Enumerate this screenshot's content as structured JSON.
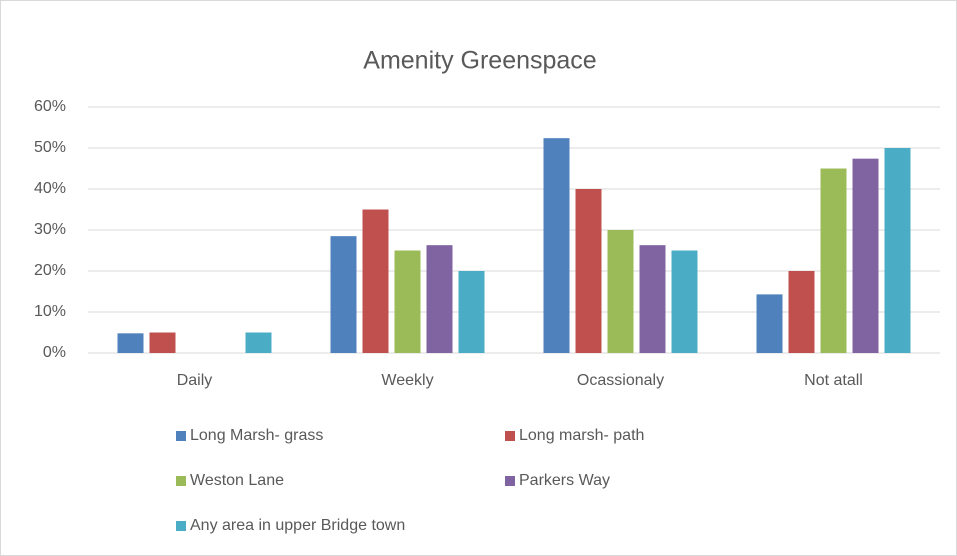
{
  "chart_data": {
    "type": "bar",
    "title": "Amenity Greenspace",
    "categories": [
      "Daily",
      "Weekly",
      "Ocassionaly",
      "Not atall"
    ],
    "series": [
      {
        "name": "Long Marsh- grass",
        "color": "#4f81bd",
        "values": [
          4.8,
          28.5,
          52.4,
          14.3
        ]
      },
      {
        "name": "Long marsh- path",
        "color": "#c0504d",
        "values": [
          5,
          35,
          40,
          20
        ]
      },
      {
        "name": "Weston Lane",
        "color": "#9bbb59",
        "values": [
          0,
          25,
          30,
          45
        ]
      },
      {
        "name": "Parkers Way",
        "color": "#8064a2",
        "values": [
          0,
          26.3,
          26.3,
          47.4
        ]
      },
      {
        "name": "Any area in upper Bridge town",
        "color": "#4bacc6",
        "values": [
          5,
          20,
          25,
          50
        ]
      }
    ],
    "ylim": [
      0,
      60
    ],
    "yticks": [
      {
        "value": 0,
        "label": "0%"
      },
      {
        "value": 10,
        "label": "10%"
      },
      {
        "value": 20,
        "label": "20%"
      },
      {
        "value": 30,
        "label": "30%"
      },
      {
        "value": 40,
        "label": "40%"
      },
      {
        "value": 50,
        "label": "50%"
      },
      {
        "value": 60,
        "label": "60%"
      }
    ],
    "grid": true,
    "legend": "bottom"
  }
}
